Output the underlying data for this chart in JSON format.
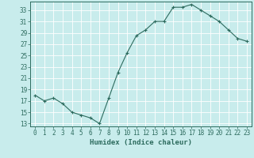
{
  "x": [
    0,
    1,
    2,
    3,
    4,
    5,
    6,
    7,
    8,
    9,
    10,
    11,
    12,
    13,
    14,
    15,
    16,
    17,
    18,
    19,
    20,
    21,
    22,
    23
  ],
  "y": [
    18,
    17,
    17.5,
    16.5,
    15,
    14.5,
    14,
    13,
    17.5,
    22,
    25.5,
    28.5,
    29.5,
    31,
    31,
    33.5,
    33.5,
    34,
    33,
    32,
    31,
    29.5,
    28,
    27.5
  ],
  "line_color": "#2d6b5e",
  "marker": "+",
  "marker_color": "#2d6b5e",
  "bg_color": "#c8ecec",
  "grid_color": "#ffffff",
  "axis_color": "#2d6b5e",
  "xlabel": "Humidex (Indice chaleur)",
  "xlim": [
    -0.5,
    23.5
  ],
  "ylim": [
    12.5,
    34.5
  ],
  "yticks": [
    13,
    15,
    17,
    19,
    21,
    23,
    25,
    27,
    29,
    31,
    33
  ],
  "xticks": [
    0,
    1,
    2,
    3,
    4,
    5,
    6,
    7,
    8,
    9,
    10,
    11,
    12,
    13,
    14,
    15,
    16,
    17,
    18,
    19,
    20,
    21,
    22,
    23
  ],
  "font_size": 5.5,
  "label_font_size": 6.5
}
